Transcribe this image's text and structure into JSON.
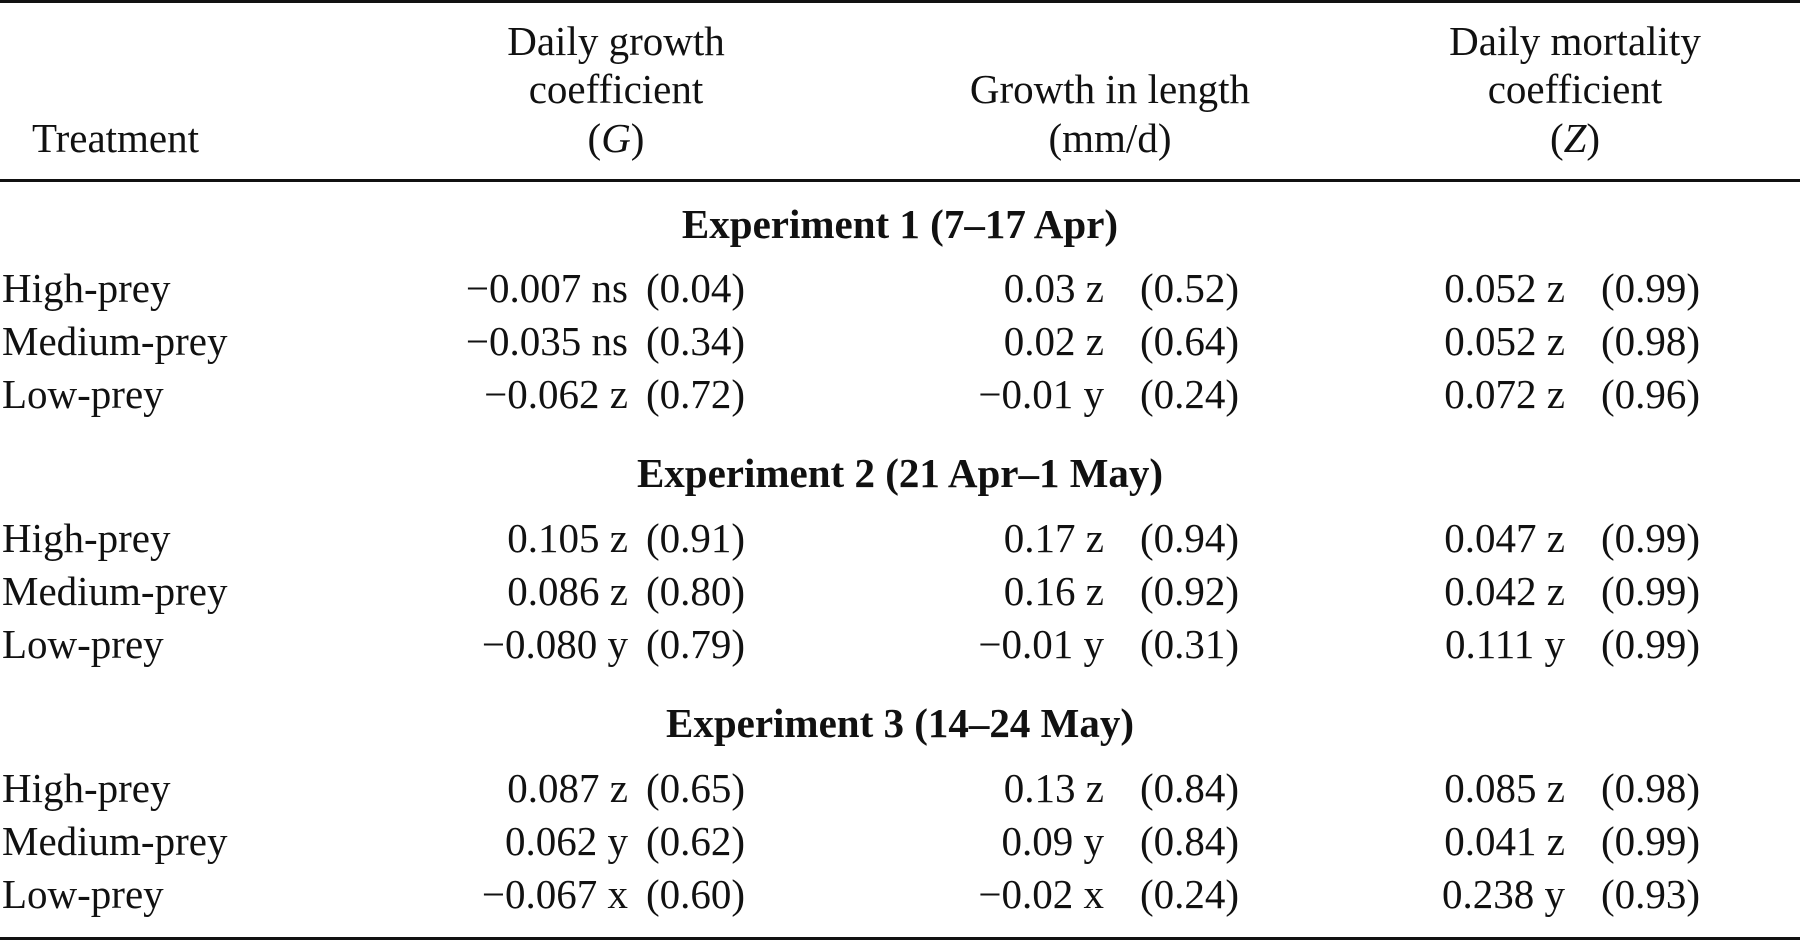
{
  "header": {
    "treatment": "Treatment",
    "growth_coef": {
      "line1": "Daily growth",
      "line2": "coefficient",
      "symbol_open": "(",
      "symbol": "G",
      "symbol_close": ")"
    },
    "growth_length": {
      "line1": "Growth in length",
      "line2": "(mm/d)"
    },
    "mortality_coef": {
      "line1": "Daily mortality",
      "line2": "coefficient",
      "symbol_open": "(",
      "symbol": "Z",
      "symbol_close": ")"
    }
  },
  "sections": [
    {
      "title": "Experiment 1 (7–17 Apr)",
      "rows": [
        {
          "treatment": "High-prey",
          "g": "−0.007 ns",
          "g_r2": "(0.04)",
          "len": "0.03 z",
          "len_r2": "(0.52)",
          "z": "0.052 z",
          "z_r2": "(0.99)"
        },
        {
          "treatment": "Medium-prey",
          "g": "−0.035 ns",
          "g_r2": "(0.34)",
          "len": "0.02 z",
          "len_r2": "(0.64)",
          "z": "0.052 z",
          "z_r2": "(0.98)"
        },
        {
          "treatment": "Low-prey",
          "g": "−0.062 z",
          "g_r2": "(0.72)",
          "len": "−0.01 y",
          "len_r2": "(0.24)",
          "z": "0.072 z",
          "z_r2": "(0.96)"
        }
      ]
    },
    {
      "title": "Experiment 2 (21 Apr–1 May)",
      "rows": [
        {
          "treatment": "High-prey",
          "g": "0.105 z",
          "g_r2": "(0.91)",
          "len": "0.17 z",
          "len_r2": "(0.94)",
          "z": "0.047 z",
          "z_r2": "(0.99)"
        },
        {
          "treatment": "Medium-prey",
          "g": "0.086 z",
          "g_r2": "(0.80)",
          "len": "0.16 z",
          "len_r2": "(0.92)",
          "z": "0.042 z",
          "z_r2": "(0.99)"
        },
        {
          "treatment": "Low-prey",
          "g": "−0.080 y",
          "g_r2": "(0.79)",
          "len": "−0.01 y",
          "len_r2": "(0.31)",
          "z": "0.111 y",
          "z_r2": "(0.99)"
        }
      ]
    },
    {
      "title": "Experiment 3 (14–24 May)",
      "rows": [
        {
          "treatment": "High-prey",
          "g": "0.087 z",
          "g_r2": "(0.65)",
          "len": "0.13 z",
          "len_r2": "(0.84)",
          "z": "0.085 z",
          "z_r2": "(0.98)"
        },
        {
          "treatment": "Medium-prey",
          "g": "0.062 y",
          "g_r2": "(0.62)",
          "len": "0.09 y",
          "len_r2": "(0.84)",
          "z": "0.041 z",
          "z_r2": "(0.99)"
        },
        {
          "treatment": "Low-prey",
          "g": "−0.067 x",
          "g_r2": "(0.60)",
          "len": "−0.02 x",
          "len_r2": "(0.24)",
          "z": "0.238 y",
          "z_r2": "(0.93)"
        }
      ]
    }
  ]
}
